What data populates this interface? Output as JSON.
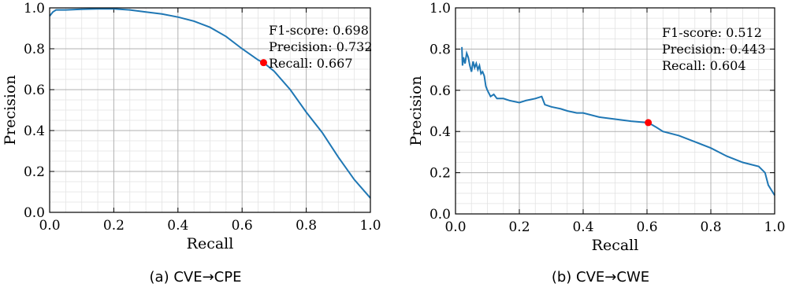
{
  "chart_data": [
    {
      "type": "line",
      "caption": "(a) CVE→CPE",
      "xlabel": "Recall",
      "ylabel": "Precision",
      "xlim": [
        0,
        1
      ],
      "ylim": [
        0,
        1
      ],
      "xticks": [
        "0.0",
        "0.2",
        "0.4",
        "0.6",
        "0.8",
        "1.0"
      ],
      "yticks": [
        "0.0",
        "0.2",
        "0.4",
        "0.6",
        "0.8",
        "1.0"
      ],
      "grid": true,
      "line_color": "#1f77b4",
      "marker_color": "#ff0000",
      "series": [
        {
          "x": [
            0.0,
            0.01,
            0.02,
            0.05,
            0.1,
            0.15,
            0.2,
            0.25,
            0.3,
            0.35,
            0.4,
            0.45,
            0.5,
            0.55,
            0.6,
            0.65,
            0.667,
            0.7,
            0.75,
            0.8,
            0.85,
            0.9,
            0.95,
            1.0
          ],
          "values": [
            0.96,
            0.98,
            0.99,
            0.99,
            0.993,
            0.995,
            0.995,
            0.99,
            0.98,
            0.97,
            0.955,
            0.935,
            0.905,
            0.86,
            0.8,
            0.745,
            0.732,
            0.69,
            0.6,
            0.49,
            0.39,
            0.27,
            0.16,
            0.07
          ]
        }
      ],
      "highlight_point": {
        "x": 0.667,
        "y": 0.732
      },
      "annotation": [
        "F1-score: 0.698",
        "Precision: 0.732",
        "Recall: 0.667"
      ]
    },
    {
      "type": "line",
      "caption": "(b) CVE→CWE",
      "xlabel": "Recall",
      "ylabel": "Precision",
      "xlim": [
        0,
        1
      ],
      "ylim": [
        0,
        1
      ],
      "xticks": [
        "0.0",
        "0.2",
        "0.4",
        "0.6",
        "0.8",
        "1.0"
      ],
      "yticks": [
        "0.0",
        "0.2",
        "0.4",
        "0.6",
        "0.8",
        "1.0"
      ],
      "grid": true,
      "line_color": "#1f77b4",
      "marker_color": "#ff0000",
      "series": [
        {
          "x": [
            0.02,
            0.022,
            0.025,
            0.03,
            0.035,
            0.04,
            0.045,
            0.05,
            0.055,
            0.06,
            0.065,
            0.07,
            0.075,
            0.08,
            0.085,
            0.09,
            0.095,
            0.1,
            0.11,
            0.12,
            0.13,
            0.15,
            0.17,
            0.2,
            0.22,
            0.25,
            0.27,
            0.28,
            0.3,
            0.33,
            0.35,
            0.38,
            0.4,
            0.45,
            0.5,
            0.55,
            0.6,
            0.604,
            0.63,
            0.65,
            0.7,
            0.75,
            0.8,
            0.85,
            0.9,
            0.95,
            0.97,
            0.98,
            1.0
          ],
          "values": [
            0.81,
            0.72,
            0.76,
            0.73,
            0.78,
            0.76,
            0.72,
            0.69,
            0.74,
            0.71,
            0.73,
            0.7,
            0.72,
            0.68,
            0.69,
            0.67,
            0.62,
            0.6,
            0.57,
            0.58,
            0.56,
            0.56,
            0.55,
            0.54,
            0.55,
            0.56,
            0.57,
            0.53,
            0.52,
            0.51,
            0.5,
            0.49,
            0.49,
            0.47,
            0.46,
            0.45,
            0.443,
            0.443,
            0.42,
            0.4,
            0.38,
            0.35,
            0.32,
            0.28,
            0.25,
            0.23,
            0.2,
            0.14,
            0.09
          ]
        }
      ],
      "highlight_point": {
        "x": 0.604,
        "y": 0.443
      },
      "annotation": [
        "F1-score: 0.512",
        "Precision: 0.443",
        "Recall: 0.604"
      ]
    }
  ]
}
